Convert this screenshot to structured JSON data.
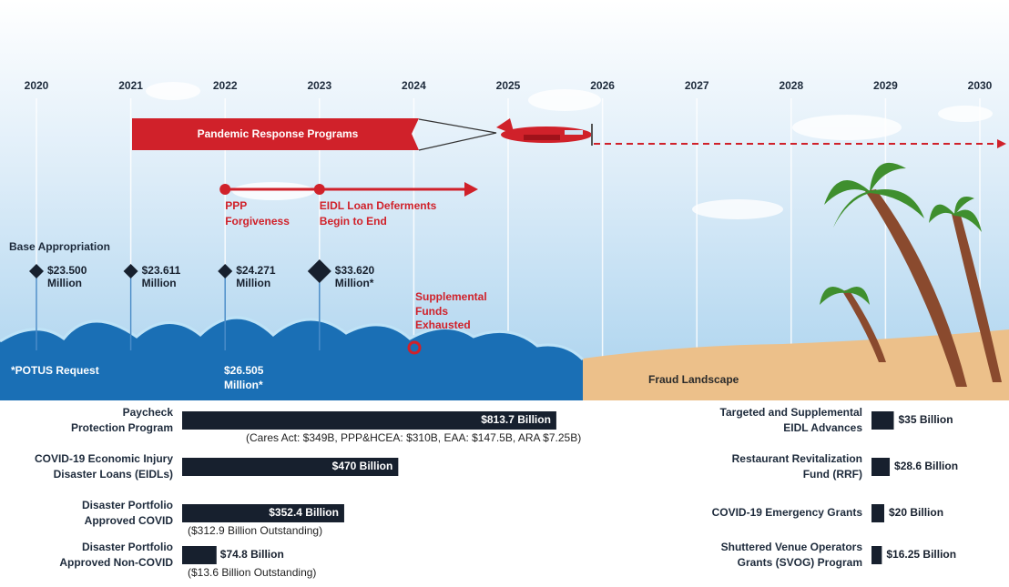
{
  "timeline": {
    "years": [
      "2020",
      "2021",
      "2022",
      "2023",
      "2024",
      "2025",
      "2026",
      "2027",
      "2028",
      "2029",
      "2030"
    ]
  },
  "banner": "Pandemic Response Programs",
  "milestones": [
    {
      "year_index": 2,
      "lines": [
        "PPP",
        "Forgiveness"
      ]
    },
    {
      "year_index": 3,
      "lines": [
        "EIDL Loan Deferments",
        "Begin to End"
      ]
    }
  ],
  "appropriations": {
    "title": "Base Appropriation",
    "items": [
      {
        "year_index": 0,
        "lines": [
          "$23.500",
          "Million"
        ]
      },
      {
        "year_index": 1,
        "lines": [
          "$23.611",
          "Million"
        ]
      },
      {
        "year_index": 2,
        "lines": [
          "$24.271",
          "Million"
        ]
      },
      {
        "year_index": 3,
        "lines": [
          "$33.620",
          "Million*"
        ]
      }
    ],
    "potus_amount": [
      "$26.505",
      "Million*"
    ],
    "footnote": "*POTUS Request"
  },
  "supplemental_note": [
    "Supplemental",
    "Funds",
    "Exhausted"
  ],
  "fraud_label": "Fraud Landscape",
  "programs_left": [
    {
      "name": [
        "Paycheck",
        "Protection Program"
      ],
      "value": 813.7,
      "label": "$813.7 Billion",
      "note": "(Cares Act: $349B, PPP&HCEA: $310B, EAA: $147.5B, ARA $7.25B)"
    },
    {
      "name": [
        "COVID-19 Economic Injury",
        "Disaster Loans (EIDLs)"
      ],
      "value": 470,
      "label": "$470 Billion"
    },
    {
      "name": [
        "Disaster Portfolio",
        "Approved COVID"
      ],
      "value": 352.4,
      "label": "$352.4 Billion",
      "note": "($312.9 Billion Outstanding)"
    },
    {
      "name": [
        "Disaster Portfolio",
        "Approved Non-COVID"
      ],
      "value": 74.8,
      "label": "$74.8 Billion",
      "note": "($13.6 Billion Outstanding)"
    }
  ],
  "programs_right": [
    {
      "name": [
        "Targeted and Supplemental",
        "EIDL Advances"
      ],
      "value": 35,
      "label": "$35 Billion"
    },
    {
      "name": [
        "Restaurant Revitalization",
        "Fund (RRF)"
      ],
      "value": 28.6,
      "label": "$28.6 Billion"
    },
    {
      "name": [
        "COVID-19 Emergency Grants"
      ],
      "value": 20,
      "label": "$20 Billion"
    },
    {
      "name": [
        "Shuttered Venue Operators",
        "Grants (SVOG) Program"
      ],
      "value": 16.25,
      "label": "$16.25 Billion"
    }
  ]
}
